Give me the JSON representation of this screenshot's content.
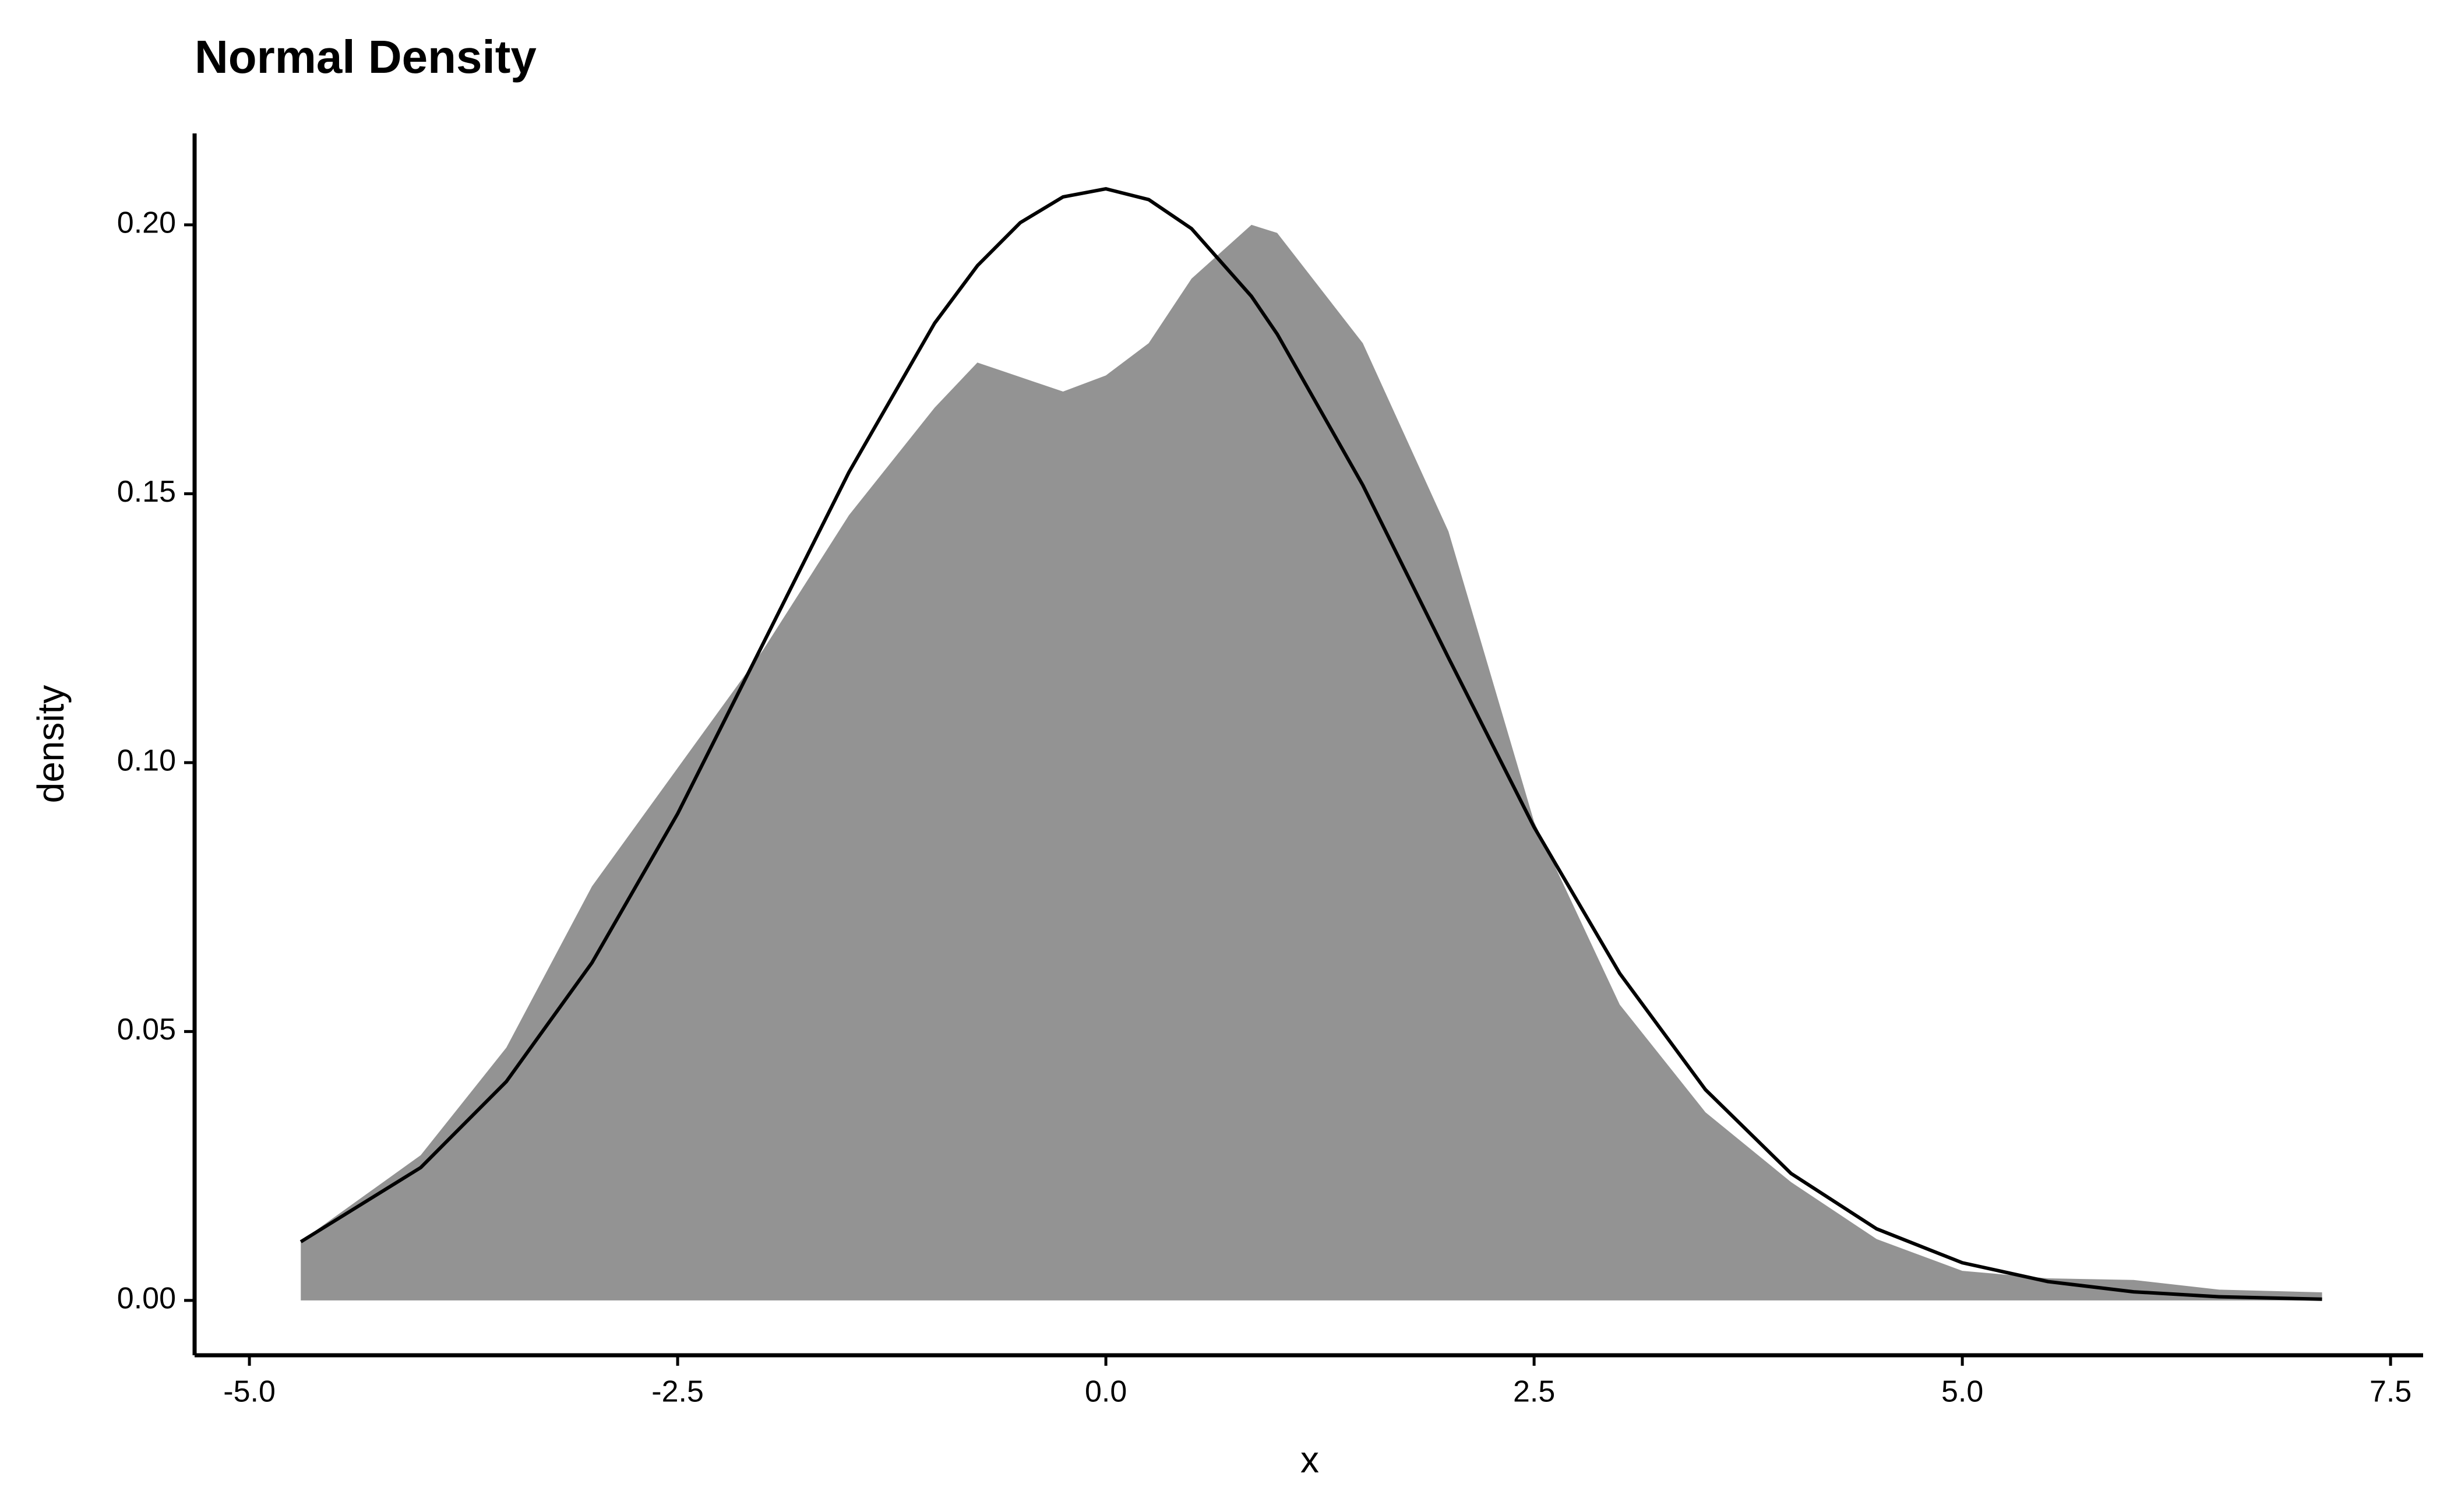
{
  "chart_data": {
    "type": "area",
    "title": "Normal Density",
    "x_label": "x",
    "y_label": "density",
    "x": [
      -4.7,
      -4.0,
      -3.5,
      -3.0,
      -2.5,
      -2.0,
      -1.5,
      -1.0,
      -0.75,
      -0.5,
      -0.25,
      0,
      0.25,
      0.5,
      0.85,
      1.0,
      1.5,
      2.0,
      2.5,
      3.0,
      3.5,
      4.0,
      4.5,
      5.0,
      5.5,
      6.0,
      6.5,
      7.1
    ],
    "series": [
      {
        "color": "#939393",
        "fill": true,
        "values": [
          0.011,
          0.027,
          0.047,
          0.077,
          0.099,
          0.121,
          0.146,
          0.166,
          0.1744,
          0.1717,
          0.169,
          0.172,
          0.178,
          0.19,
          0.2,
          0.1985,
          0.178,
          0.143,
          0.089,
          0.055,
          0.035,
          0.022,
          0.0114,
          0.0055,
          0.0041,
          0.0038,
          0.002,
          0.0015
        ]
      },
      {
        "color": "#000000",
        "fill": false,
        "values": [
          0.0109,
          0.0247,
          0.0407,
          0.0628,
          0.0905,
          0.1222,
          0.154,
          0.1817,
          0.1924,
          0.2004,
          0.2052,
          0.2067,
          0.2047,
          0.1993,
          0.1867,
          0.1797,
          0.1516,
          0.1195,
          0.088,
          0.0608,
          0.0392,
          0.0236,
          0.0133,
          0.007,
          0.0035,
          0.0016,
          0.00068,
          0.00023
        ]
      }
    ],
    "xlim": [
      -5.32,
      7.69
    ],
    "ylim": [
      -0.0102,
      0.217
    ],
    "xticks": [
      {
        "value": -5,
        "label": "-5.0"
      },
      {
        "value": -2.5,
        "label": "-2.5"
      },
      {
        "value": 0,
        "label": "0.0"
      },
      {
        "value": 2.5,
        "label": "2.5"
      },
      {
        "value": 5,
        "label": "5.0"
      },
      {
        "value": 7.5,
        "label": "7.5"
      }
    ],
    "yticks": [
      {
        "value": 0,
        "label": "0.00"
      },
      {
        "value": 0.05,
        "label": "0.05"
      },
      {
        "value": 0.1,
        "label": "0.10"
      },
      {
        "value": 0.15,
        "label": "0.15"
      },
      {
        "value": 0.2,
        "label": "0.20"
      }
    ],
    "grid": false
  }
}
